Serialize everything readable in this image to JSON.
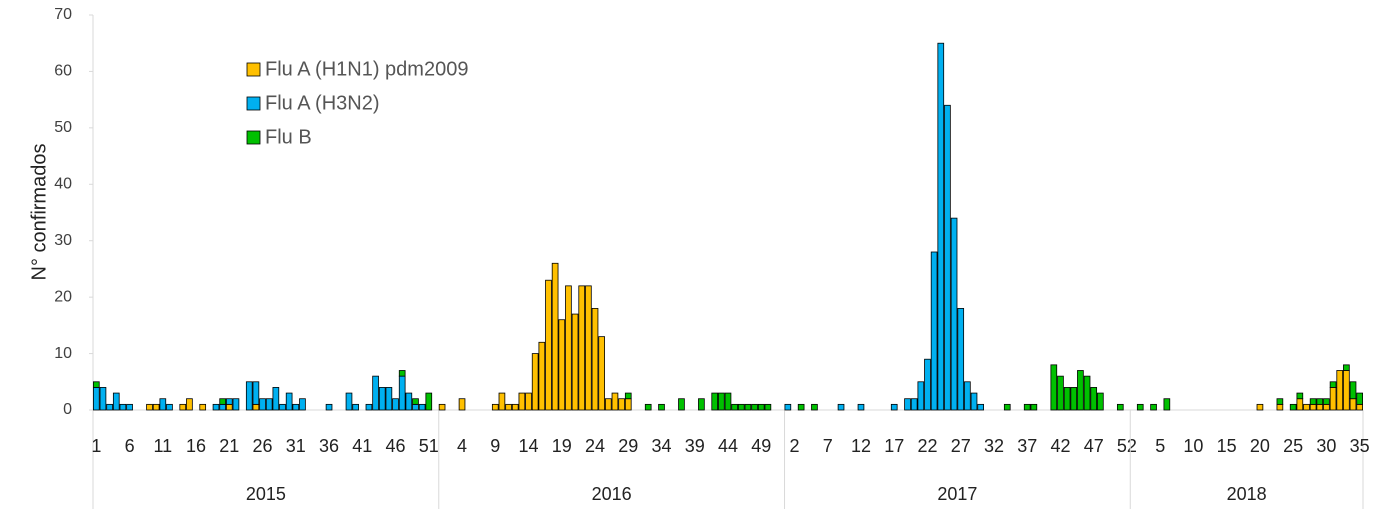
{
  "chart_data": {
    "type": "stacked_bar",
    "y_label": "N° confirmados",
    "groups": [
      {
        "name": "2015",
        "categories": [
          "1",
          null,
          null,
          null,
          null,
          "6",
          null,
          null,
          null,
          null,
          "11",
          null,
          null,
          null,
          null,
          "16",
          null,
          null,
          null,
          null,
          "21",
          null,
          null,
          null,
          null,
          "26",
          null,
          null,
          null,
          null,
          "31",
          null,
          null,
          null,
          null,
          "36",
          null,
          null,
          null,
          null,
          "41",
          null,
          null,
          null,
          null,
          "46",
          null,
          null,
          null,
          null,
          "51",
          null
        ]
      },
      {
        "name": "2016",
        "categories": [
          null,
          null,
          null,
          "4",
          null,
          null,
          null,
          null,
          "9",
          null,
          null,
          null,
          null,
          "14",
          null,
          null,
          null,
          null,
          "19",
          null,
          null,
          null,
          null,
          "24",
          null,
          null,
          null,
          null,
          "29",
          null,
          null,
          null,
          null,
          "34",
          null,
          null,
          null,
          null,
          "39",
          null,
          null,
          null,
          null,
          "44",
          null,
          null,
          null,
          null,
          "49",
          null,
          null,
          null
        ]
      },
      {
        "name": "2017",
        "categories": [
          null,
          "2",
          null,
          null,
          null,
          null,
          "7",
          null,
          null,
          null,
          null,
          "12",
          null,
          null,
          null,
          null,
          "17",
          null,
          null,
          null,
          null,
          "22",
          null,
          null,
          null,
          null,
          "27",
          null,
          null,
          null,
          null,
          "32",
          null,
          null,
          null,
          null,
          "37",
          null,
          null,
          null,
          null,
          "42",
          null,
          null,
          null,
          null,
          "47",
          null,
          null,
          null,
          null,
          "52"
        ]
      },
      {
        "name": "2018",
        "categories": [
          null,
          null,
          null,
          null,
          "5",
          null,
          null,
          null,
          null,
          "10",
          null,
          null,
          null,
          null,
          "15",
          null,
          null,
          null,
          null,
          "20",
          null,
          null,
          null,
          null,
          "25",
          null,
          null,
          null,
          null,
          "30",
          null,
          null,
          null,
          null,
          "35"
        ]
      }
    ],
    "series": [
      {
        "name": "Flu A (H1N1) pdm2009",
        "color": "#ffc000",
        "values": [
          0,
          0,
          0,
          0,
          0,
          0,
          0,
          0,
          1,
          1,
          0,
          0,
          0,
          1,
          2,
          0,
          1,
          0,
          0,
          0,
          1,
          0,
          0,
          0,
          1,
          0,
          0,
          0,
          0,
          0,
          0,
          0,
          0,
          0,
          0,
          0,
          0,
          0,
          0,
          0,
          0,
          0,
          0,
          0,
          0,
          0,
          0,
          0,
          0,
          0,
          0,
          0,
          1,
          0,
          0,
          2,
          0,
          0,
          0,
          0,
          1,
          3,
          1,
          1,
          3,
          3,
          10,
          12,
          23,
          26,
          16,
          22,
          17,
          22,
          22,
          18,
          13,
          2,
          3,
          2,
          2,
          0,
          0,
          0,
          0,
          0,
          0,
          0,
          0,
          0,
          0,
          0,
          0,
          0,
          0,
          0,
          0,
          0,
          0,
          0,
          0,
          0,
          0,
          0,
          0,
          0,
          0,
          0,
          0,
          0,
          0,
          0,
          0,
          0,
          0,
          0,
          0,
          0,
          0,
          0,
          0,
          0,
          0,
          0,
          0,
          0,
          0,
          0,
          0,
          0,
          0,
          0,
          0,
          0,
          0,
          0,
          0,
          0,
          0,
          0,
          0,
          0,
          0,
          0,
          0,
          0,
          0,
          0,
          0,
          0,
          0,
          0,
          0,
          0,
          0,
          0,
          0,
          0,
          0,
          0,
          0,
          0,
          0,
          0,
          0,
          0,
          0,
          0,
          0,
          0,
          0,
          0,
          0,
          0,
          0,
          1,
          0,
          0,
          1,
          0,
          0,
          2,
          1,
          1,
          1,
          1,
          4,
          7,
          7,
          2,
          1
        ]
      },
      {
        "name": "Flu A (H3N2)",
        "color": "#00b0f0",
        "values": [
          4,
          4,
          1,
          3,
          1,
          1,
          0,
          0,
          0,
          0,
          2,
          1,
          0,
          0,
          0,
          0,
          0,
          0,
          1,
          1,
          1,
          2,
          0,
          5,
          4,
          2,
          2,
          4,
          1,
          3,
          1,
          2,
          0,
          0,
          0,
          1,
          0,
          0,
          3,
          1,
          0,
          1,
          6,
          4,
          4,
          2,
          6,
          3,
          1,
          1,
          0,
          0,
          0,
          0,
          0,
          0,
          0,
          0,
          0,
          0,
          0,
          0,
          0,
          0,
          0,
          0,
          0,
          0,
          0,
          0,
          0,
          0,
          0,
          0,
          0,
          0,
          0,
          0,
          0,
          0,
          0,
          0,
          0,
          0,
          0,
          0,
          0,
          0,
          0,
          0,
          0,
          0,
          0,
          0,
          0,
          0,
          0,
          0,
          0,
          0,
          0,
          0,
          0,
          0,
          1,
          0,
          0,
          0,
          0,
          0,
          0,
          0,
          1,
          0,
          0,
          1,
          0,
          0,
          0,
          0,
          1,
          0,
          2,
          2,
          5,
          9,
          28,
          65,
          54,
          34,
          18,
          5,
          3,
          1,
          0,
          0,
          0,
          0,
          0,
          0,
          0,
          0,
          0,
          0,
          0,
          0,
          0,
          0,
          0,
          0,
          0,
          0,
          0,
          0,
          0,
          0,
          0,
          0,
          0,
          0,
          0,
          0,
          0,
          0,
          0,
          0,
          0,
          0,
          0,
          0,
          0,
          0,
          0,
          0,
          0,
          0,
          0,
          0,
          0,
          0,
          0,
          0,
          0,
          0,
          0,
          0,
          0,
          0,
          0,
          0,
          0
        ]
      },
      {
        "name": "Flu B",
        "color": "#00c000",
        "values": [
          1,
          0,
          0,
          0,
          0,
          0,
          0,
          0,
          0,
          0,
          0,
          0,
          0,
          0,
          0,
          0,
          0,
          0,
          0,
          1,
          0,
          0,
          0,
          0,
          0,
          0,
          0,
          0,
          0,
          0,
          0,
          0,
          0,
          0,
          0,
          0,
          0,
          0,
          0,
          0,
          0,
          0,
          0,
          0,
          0,
          0,
          1,
          0,
          1,
          0,
          3,
          0,
          0,
          0,
          0,
          0,
          0,
          0,
          0,
          0,
          0,
          0,
          0,
          0,
          0,
          0,
          0,
          0,
          0,
          0,
          0,
          0,
          0,
          0,
          0,
          0,
          0,
          0,
          0,
          0,
          1,
          0,
          0,
          1,
          0,
          1,
          0,
          0,
          2,
          0,
          0,
          2,
          0,
          3,
          3,
          3,
          1,
          1,
          1,
          1,
          1,
          1,
          0,
          0,
          0,
          0,
          1,
          0,
          1,
          0,
          0,
          0,
          0,
          0,
          0,
          0,
          0,
          0,
          0,
          0,
          0,
          0,
          0,
          0,
          0,
          0,
          0,
          0,
          0,
          0,
          0,
          0,
          0,
          0,
          0,
          0,
          0,
          1,
          0,
          0,
          1,
          1,
          0,
          0,
          8,
          6,
          4,
          4,
          7,
          6,
          4,
          3,
          0,
          0,
          1,
          0,
          0,
          1,
          0,
          1,
          0,
          2,
          0,
          0,
          0,
          0,
          0,
          0,
          0,
          0,
          0,
          0,
          0,
          0,
          0,
          0,
          0,
          0,
          1,
          0,
          1,
          1,
          0,
          1,
          1,
          1,
          1,
          0,
          1,
          3,
          2
        ]
      }
    ],
    "ylim": [
      0,
      70
    ],
    "yticks": [
      0,
      10,
      20,
      30,
      40,
      50,
      60,
      70
    ],
    "legend": "upper-left"
  }
}
